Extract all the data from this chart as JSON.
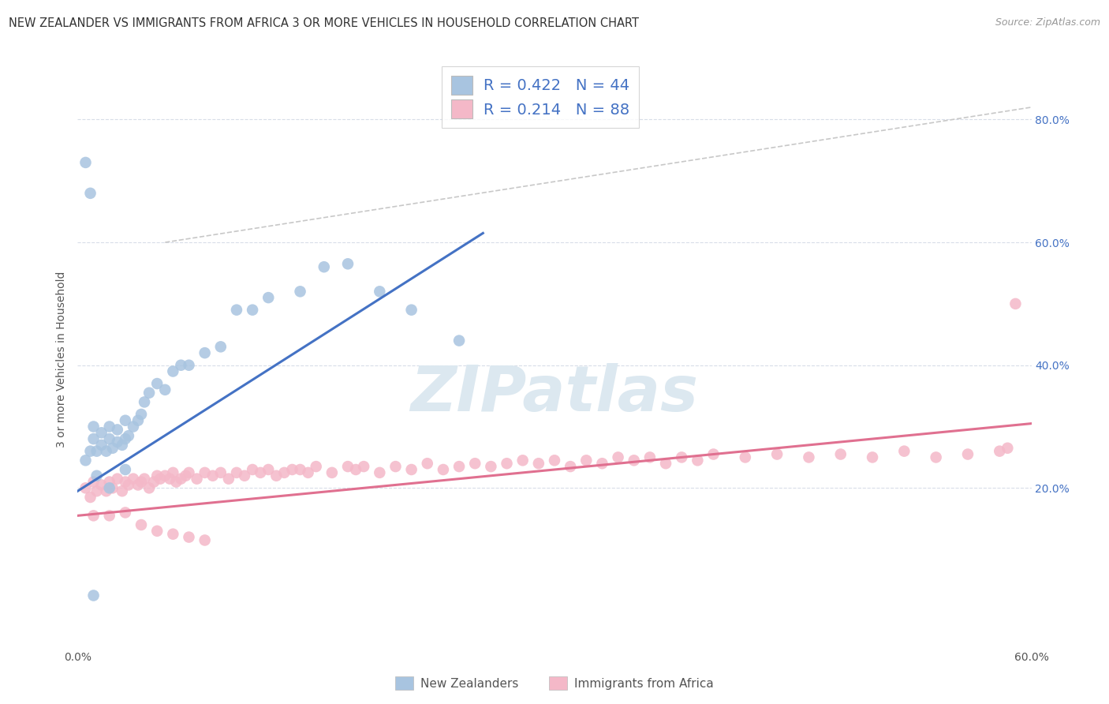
{
  "title": "NEW ZEALANDER VS IMMIGRANTS FROM AFRICA 3 OR MORE VEHICLES IN HOUSEHOLD CORRELATION CHART",
  "source": "Source: ZipAtlas.com",
  "ylabel": "3 or more Vehicles in Household",
  "legend_label1": "New Zealanders",
  "legend_label2": "Immigrants from Africa",
  "r1": 0.422,
  "n1": 44,
  "r2": 0.214,
  "n2": 88,
  "color_blue": "#a8c4e0",
  "color_pink": "#f4b8c8",
  "line_color_blue": "#4472c4",
  "line_color_pink": "#e07090",
  "dash_color": "#c8c8c8",
  "watermark_color": "#dce8f0",
  "grid_color": "#d8dde8",
  "xlim": [
    0.0,
    0.6
  ],
  "ylim": [
    -0.06,
    0.88
  ],
  "y_tick_vals": [
    0.2,
    0.4,
    0.6,
    0.8
  ],
  "blue_line_x": [
    0.0,
    0.255
  ],
  "blue_line_y": [
    0.195,
    0.615
  ],
  "pink_line_x": [
    0.0,
    0.6
  ],
  "pink_line_y": [
    0.155,
    0.305
  ],
  "dash_line_x": [
    0.055,
    0.6
  ],
  "dash_line_y": [
    0.6,
    0.82
  ],
  "blue_x": [
    0.005,
    0.008,
    0.01,
    0.01,
    0.012,
    0.015,
    0.015,
    0.018,
    0.02,
    0.02,
    0.022,
    0.025,
    0.025,
    0.028,
    0.03,
    0.03,
    0.032,
    0.035,
    0.038,
    0.04,
    0.042,
    0.045,
    0.05,
    0.055,
    0.06,
    0.065,
    0.07,
    0.08,
    0.09,
    0.1,
    0.11,
    0.12,
    0.14,
    0.155,
    0.17,
    0.19,
    0.21,
    0.24,
    0.005,
    0.008,
    0.01,
    0.012,
    0.02,
    0.03
  ],
  "blue_y": [
    0.245,
    0.26,
    0.28,
    0.3,
    0.26,
    0.27,
    0.29,
    0.26,
    0.28,
    0.3,
    0.265,
    0.275,
    0.295,
    0.27,
    0.28,
    0.31,
    0.285,
    0.3,
    0.31,
    0.32,
    0.34,
    0.355,
    0.37,
    0.36,
    0.39,
    0.4,
    0.4,
    0.42,
    0.43,
    0.49,
    0.49,
    0.51,
    0.52,
    0.56,
    0.565,
    0.52,
    0.49,
    0.44,
    0.73,
    0.68,
    0.025,
    0.22,
    0.2,
    0.23
  ],
  "pink_x": [
    0.005,
    0.008,
    0.01,
    0.012,
    0.015,
    0.018,
    0.02,
    0.022,
    0.025,
    0.028,
    0.03,
    0.032,
    0.035,
    0.038,
    0.04,
    0.042,
    0.045,
    0.048,
    0.05,
    0.052,
    0.055,
    0.058,
    0.06,
    0.062,
    0.065,
    0.068,
    0.07,
    0.075,
    0.08,
    0.085,
    0.09,
    0.095,
    0.1,
    0.105,
    0.11,
    0.115,
    0.12,
    0.125,
    0.13,
    0.135,
    0.14,
    0.145,
    0.15,
    0.16,
    0.17,
    0.175,
    0.18,
    0.19,
    0.2,
    0.21,
    0.22,
    0.23,
    0.24,
    0.25,
    0.26,
    0.27,
    0.28,
    0.29,
    0.3,
    0.31,
    0.32,
    0.33,
    0.34,
    0.35,
    0.36,
    0.37,
    0.38,
    0.39,
    0.4,
    0.42,
    0.44,
    0.46,
    0.48,
    0.5,
    0.52,
    0.54,
    0.56,
    0.58,
    0.585,
    0.59,
    0.01,
    0.02,
    0.03,
    0.04,
    0.05,
    0.06,
    0.07,
    0.08
  ],
  "pink_y": [
    0.2,
    0.185,
    0.21,
    0.195,
    0.205,
    0.195,
    0.21,
    0.2,
    0.215,
    0.195,
    0.21,
    0.205,
    0.215,
    0.205,
    0.21,
    0.215,
    0.2,
    0.21,
    0.22,
    0.215,
    0.22,
    0.215,
    0.225,
    0.21,
    0.215,
    0.22,
    0.225,
    0.215,
    0.225,
    0.22,
    0.225,
    0.215,
    0.225,
    0.22,
    0.23,
    0.225,
    0.23,
    0.22,
    0.225,
    0.23,
    0.23,
    0.225,
    0.235,
    0.225,
    0.235,
    0.23,
    0.235,
    0.225,
    0.235,
    0.23,
    0.24,
    0.23,
    0.235,
    0.24,
    0.235,
    0.24,
    0.245,
    0.24,
    0.245,
    0.235,
    0.245,
    0.24,
    0.25,
    0.245,
    0.25,
    0.24,
    0.25,
    0.245,
    0.255,
    0.25,
    0.255,
    0.25,
    0.255,
    0.25,
    0.26,
    0.25,
    0.255,
    0.26,
    0.265,
    0.5,
    0.155,
    0.155,
    0.16,
    0.14,
    0.13,
    0.125,
    0.12,
    0.115
  ]
}
